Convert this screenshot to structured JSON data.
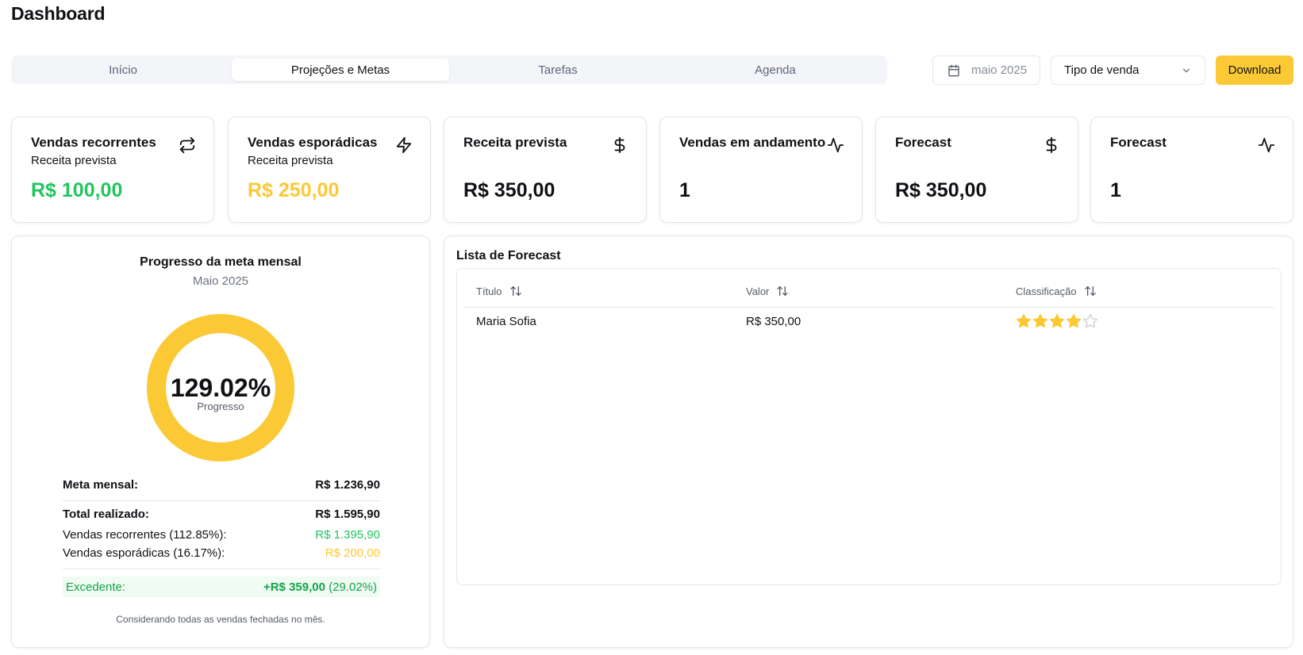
{
  "page_title": "Dashboard",
  "tabs": [
    {
      "label": "Início",
      "active": false
    },
    {
      "label": "Projeções e Metas",
      "active": true
    },
    {
      "label": "Tarefas",
      "active": false
    },
    {
      "label": "Agenda",
      "active": false
    }
  ],
  "filters": {
    "date_value": "maio 2025",
    "sale_type_value": "Tipo de venda",
    "download_label": "Download"
  },
  "kpis": [
    {
      "title": "Vendas recorrentes",
      "subtitle": "Receita prevista",
      "value": "R$ 100,00",
      "icon": "repeat-icon",
      "value_color": "#22c55e"
    },
    {
      "title": "Vendas esporádicas",
      "subtitle": "Receita prevista",
      "value": "R$ 250,00",
      "icon": "zap-icon",
      "value_color": "#fbc935"
    },
    {
      "title": "Receita prevista",
      "subtitle": "",
      "value": "R$ 350,00",
      "icon": "dollar-icon",
      "value_color": "#0f1115"
    },
    {
      "title": "Vendas em andamento",
      "subtitle": "",
      "value": "1",
      "icon": "activity-icon",
      "value_color": "#0f1115"
    },
    {
      "title": "Forecast",
      "subtitle": "",
      "value": "R$ 350,00",
      "icon": "dollar-icon",
      "value_color": "#0f1115"
    },
    {
      "title": "Forecast",
      "subtitle": "",
      "value": "1",
      "icon": "activity-icon",
      "value_color": "#0f1115"
    }
  ],
  "progress": {
    "title": "Progresso da meta mensal",
    "subtitle": "Maio 2025",
    "percent_text": "129.02%",
    "percent_label": "Progresso",
    "fill_fraction": 1.0,
    "ring_color": "#fbc935",
    "meta_label": "Meta mensal:",
    "meta_value": "R$ 1.236,90",
    "total_label": "Total realizado:",
    "total_value": "R$ 1.595,90",
    "recorrentes_label": "Vendas recorrentes (112.85%):",
    "recorrentes_value": "R$ 1.395,90",
    "esporadicas_label": "Vendas esporádicas (16.17%):",
    "esporadicas_value": "R$ 200,00",
    "excedente_label": "Excedente:",
    "excedente_value": "+R$ 359,00",
    "excedente_pct": "(29.02%)",
    "note": "Considerando todas as vendas fechadas no mês."
  },
  "forecast_list": {
    "title": "Lista de Forecast",
    "columns": [
      "Título",
      "Valor",
      "Classificação"
    ],
    "rows": [
      {
        "titulo": "Maria Sofia",
        "valor": "R$ 350,00",
        "rating": 4,
        "max_rating": 5
      }
    ]
  }
}
